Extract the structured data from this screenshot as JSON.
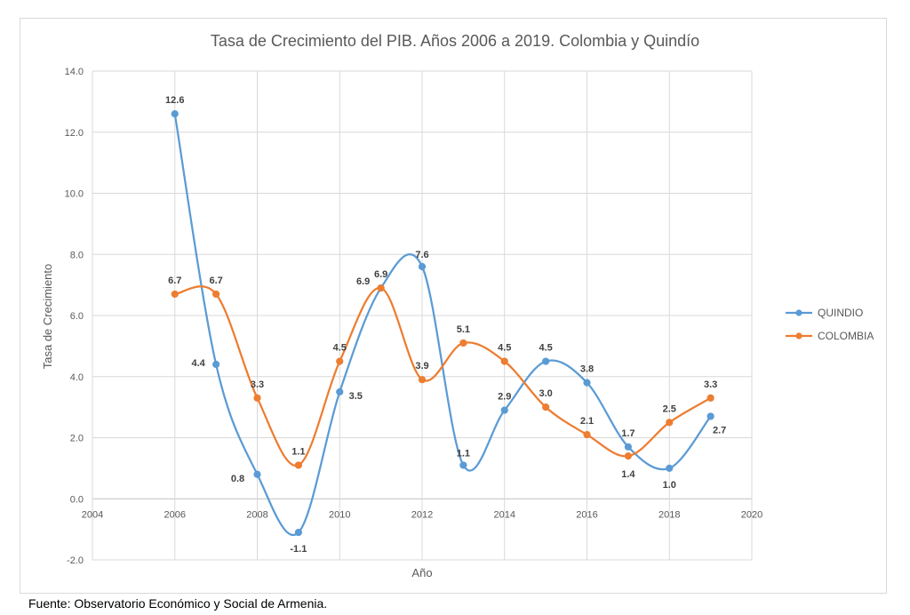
{
  "source_note": "Fuente: Observatorio Económico y Social de Armenia.",
  "chart_data": {
    "type": "line",
    "title": "Tasa de Crecimiento  del PIB. Años 2006 a 2019. Colombia  y Quindío",
    "xlabel": "Año",
    "ylabel": "Tasa de Crecimiento",
    "xlim": [
      2004,
      2020
    ],
    "ylim": [
      -2.0,
      14.0
    ],
    "x_ticks": [
      "2004",
      "2006",
      "2008",
      "2010",
      "2012",
      "2014",
      "2016",
      "2018",
      "2020"
    ],
    "y_ticks": [
      "-2.0",
      "0.0",
      "2.0",
      "4.0",
      "6.0",
      "8.0",
      "10.0",
      "12.0",
      "14.0"
    ],
    "grid": true,
    "smooth": true,
    "legend_position": "right",
    "series": [
      {
        "name": "QUINDIO",
        "color": "#5b9bd5",
        "x": [
          2006,
          2007,
          2008,
          2009,
          2010,
          2011,
          2012,
          2013,
          2014,
          2015,
          2016,
          2017,
          2018,
          2019
        ],
        "values": [
          12.6,
          4.4,
          0.8,
          -1.1,
          3.5,
          6.9,
          7.6,
          1.1,
          2.9,
          4.5,
          3.8,
          1.7,
          1.0,
          2.7
        ],
        "labels": [
          "12.6",
          "4.4",
          "0.8",
          "-1.1",
          "3.5",
          "6.9",
          "7.6",
          "1.1",
          "2.9",
          "4.5",
          "3.8",
          "1.7",
          "1.0",
          "2.7"
        ]
      },
      {
        "name": "COLOMBIA",
        "color": "#ed7d31",
        "x": [
          2006,
          2007,
          2008,
          2009,
          2010,
          2011,
          2012,
          2013,
          2014,
          2015,
          2016,
          2017,
          2018,
          2019
        ],
        "values": [
          6.7,
          6.7,
          3.3,
          1.1,
          4.5,
          6.9,
          3.9,
          5.1,
          4.5,
          3.0,
          2.1,
          1.4,
          2.5,
          3.3
        ],
        "labels": [
          "6.7",
          "6.7",
          "3.3",
          "1.1",
          "4.5",
          "6.9",
          "3.9",
          "5.1",
          "4.5",
          "3.0",
          "2.1",
          "1.4",
          "2.5",
          "3.3"
        ]
      }
    ]
  }
}
